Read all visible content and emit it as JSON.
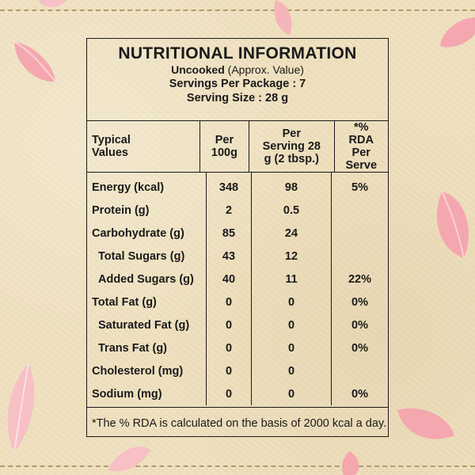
{
  "panel": {
    "title": "NUTRITIONAL INFORMATION",
    "state": "Uncooked",
    "state_note": "(Approx. Value)",
    "servings_per_package": "Servings Per Package : 7",
    "serving_size": "Serving Size : 28 g"
  },
  "table": {
    "headers": {
      "typical": "Typical Values",
      "per100": "Per 100g",
      "per_serving": "Per Serving 28 g (2 tbsp.)",
      "rda": "*% RDA Per Serve"
    },
    "rows": [
      {
        "name": "Energy (kcal)",
        "per100": "348",
        "serving": "98",
        "rda": "5%"
      },
      {
        "name": "Protein (g)",
        "per100": "2",
        "serving": "0.5",
        "rda": ""
      },
      {
        "name": "Carbohydrate (g)",
        "per100": "85",
        "serving": "24",
        "rda": ""
      },
      {
        "name": "Total Sugars (g)",
        "per100": "43",
        "serving": "12",
        "rda": ""
      },
      {
        "name": "Added Sugars (g)",
        "per100": "40",
        "serving": "11",
        "rda": "22%"
      },
      {
        "name": "Total Fat (g)",
        "per100": "0",
        "serving": "0",
        "rda": "0%"
      },
      {
        "name": "Saturated Fat (g)",
        "per100": "0",
        "serving": "0",
        "rda": "0%"
      },
      {
        "name": "Trans Fat (g)",
        "per100": "0",
        "serving": "0",
        "rda": "0%"
      },
      {
        "name": "Cholesterol (mg)",
        "per100": "0",
        "serving": "0",
        "rda": ""
      },
      {
        "name": "Sodium (mg)",
        "per100": "0",
        "serving": "0",
        "rda": "0%"
      }
    ],
    "footnote": "*The % RDA is calculated on the basis of 2000 kcal a day."
  },
  "decor": {
    "background_color": "#efe1c0",
    "petal_color": "#f4a7ae",
    "border_color": "#1a1a1a"
  }
}
